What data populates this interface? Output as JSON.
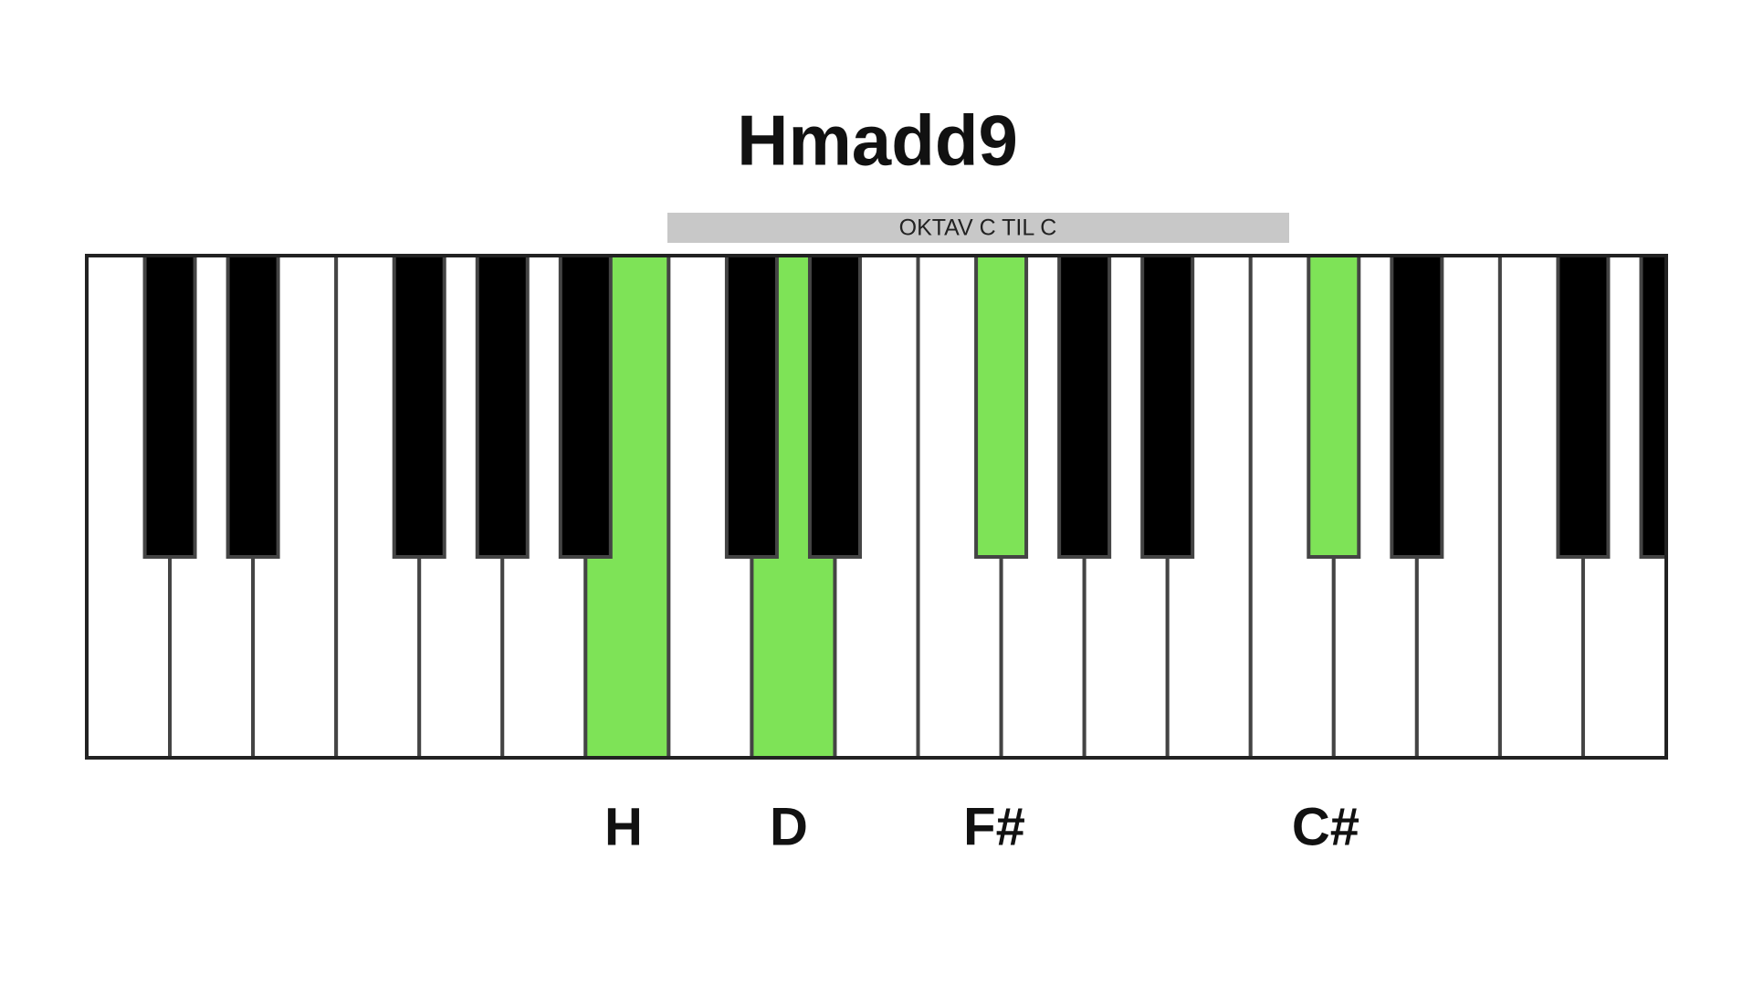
{
  "title": "Hmadd9",
  "octave_label": "OKTAV C TIL C",
  "notes": [
    "H",
    "D",
    "F#",
    "C#"
  ]
}
